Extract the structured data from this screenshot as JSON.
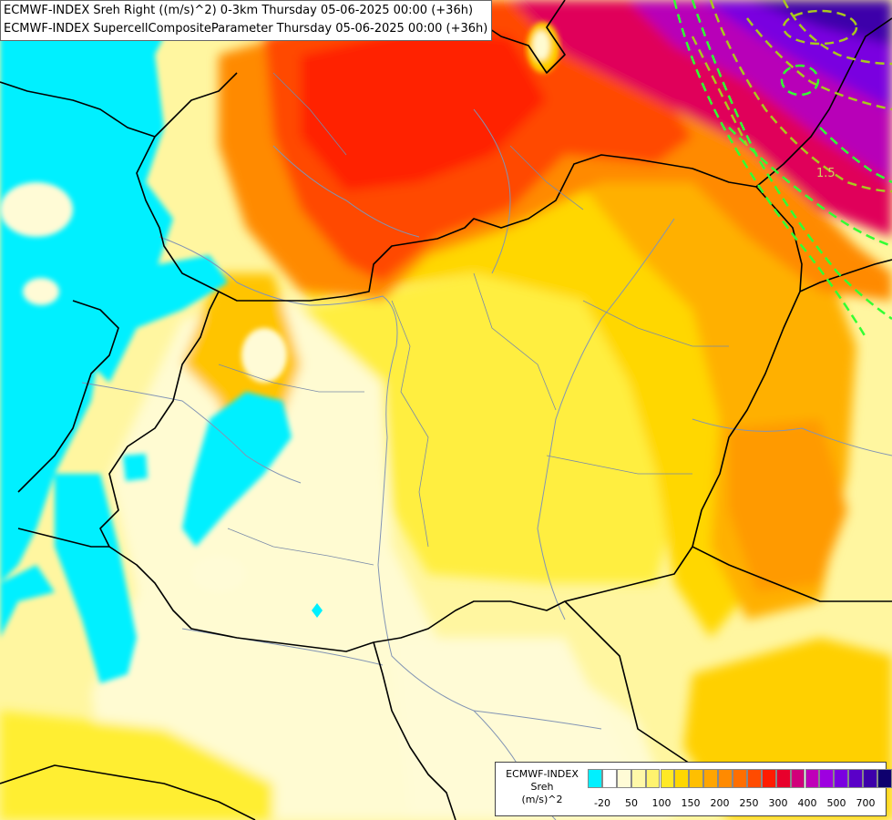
{
  "titles": {
    "line1": "ECMWF-INDEX Sreh Right ((m/s)^2) 0-3km Thursday 05-06-2025 00:00 (+36h)",
    "line2": "ECMWF-INDEX SupercellCompositeParameter Thursday 05-06-2025 00:00 (+36h)"
  },
  "legend": {
    "source": "ECMWF-INDEX",
    "variable": "Sreh",
    "unit": "(m/s)^2",
    "colors": [
      "#00f0ff",
      "#ffffff",
      "#fffbd6",
      "#fff8a8",
      "#fff36e",
      "#ffe926",
      "#ffd700",
      "#ffbf00",
      "#ffa500",
      "#ff8a00",
      "#ff6e00",
      "#ff4b00",
      "#ff1c00",
      "#e8002c",
      "#d1007a",
      "#bf00b8",
      "#9e00e0",
      "#7a00e0",
      "#5a00c8",
      "#3d00aa",
      "#0e006e"
    ],
    "ticks": [
      "-20",
      "50",
      "100",
      "150",
      "200",
      "250",
      "300",
      "400",
      "500",
      "700"
    ]
  },
  "contour_labels": [
    "1.5"
  ],
  "map_colors": {
    "background": "#fff9b0",
    "cyan": "#00f0ff",
    "border": "#000000",
    "river": "#8294b4",
    "scp_contour": "#a9c81e",
    "scp_contour_bright": "#33ff33"
  }
}
